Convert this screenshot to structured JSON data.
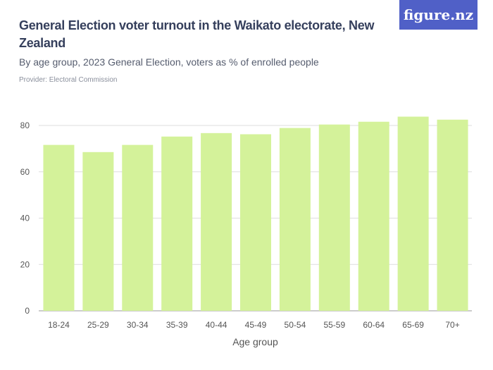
{
  "header": {
    "title": "General Election voter turnout in the Waikato electorate, New Zealand",
    "subtitle": "By age group, 2023 General Election, voters as % of enrolled people",
    "provider": "Provider: Electoral Commission",
    "logo": "figure.nz"
  },
  "chart_data": {
    "type": "bar",
    "categories": [
      "18-24",
      "25-29",
      "30-34",
      "35-39",
      "40-44",
      "45-49",
      "50-54",
      "55-59",
      "60-64",
      "65-69",
      "70+"
    ],
    "values": [
      71.6,
      68.5,
      71.6,
      75.2,
      76.7,
      76.2,
      78.9,
      80.4,
      81.6,
      83.8,
      82.5
    ],
    "xlabel": "Age group",
    "ylabel": "",
    "ylim": [
      0,
      80
    ],
    "yticks": [
      0,
      20,
      40,
      60,
      80
    ],
    "grid": true,
    "bar_color": "#d4f29a"
  }
}
